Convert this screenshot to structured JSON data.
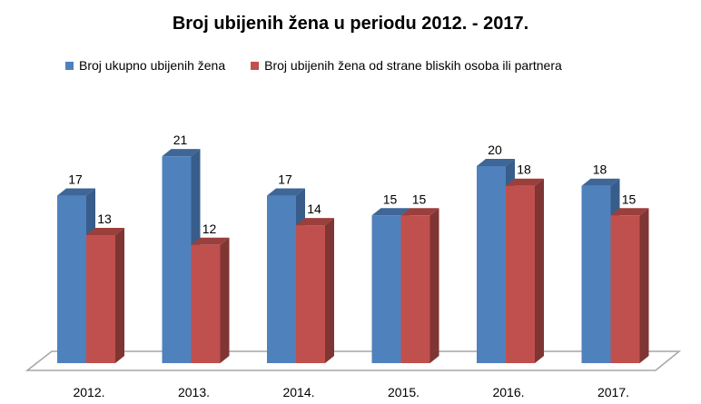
{
  "chart_data": {
    "type": "bar",
    "title": "Broj ubijenih žena u periodu 2012. - 2017.",
    "categories": [
      "2012.",
      "2013.",
      "2014.",
      "2015.",
      "2016.",
      "2017."
    ],
    "series": [
      {
        "name": "Broj ukupno ubijenih žena",
        "values": [
          17,
          21,
          17,
          15,
          20,
          18
        ],
        "color": "#4f81bd",
        "side": "#385d8a",
        "top": "#3e6696"
      },
      {
        "name": "Broj ubijenih žena od strane bliskih osoba ili partnera",
        "values": [
          13,
          12,
          14,
          15,
          18,
          15
        ],
        "color": "#c0504d",
        "side": "#7f3533",
        "top": "#9b3f3c"
      }
    ],
    "three_d": true,
    "grid": false,
    "legend_position": "top",
    "ylim": [
      0,
      21
    ]
  }
}
